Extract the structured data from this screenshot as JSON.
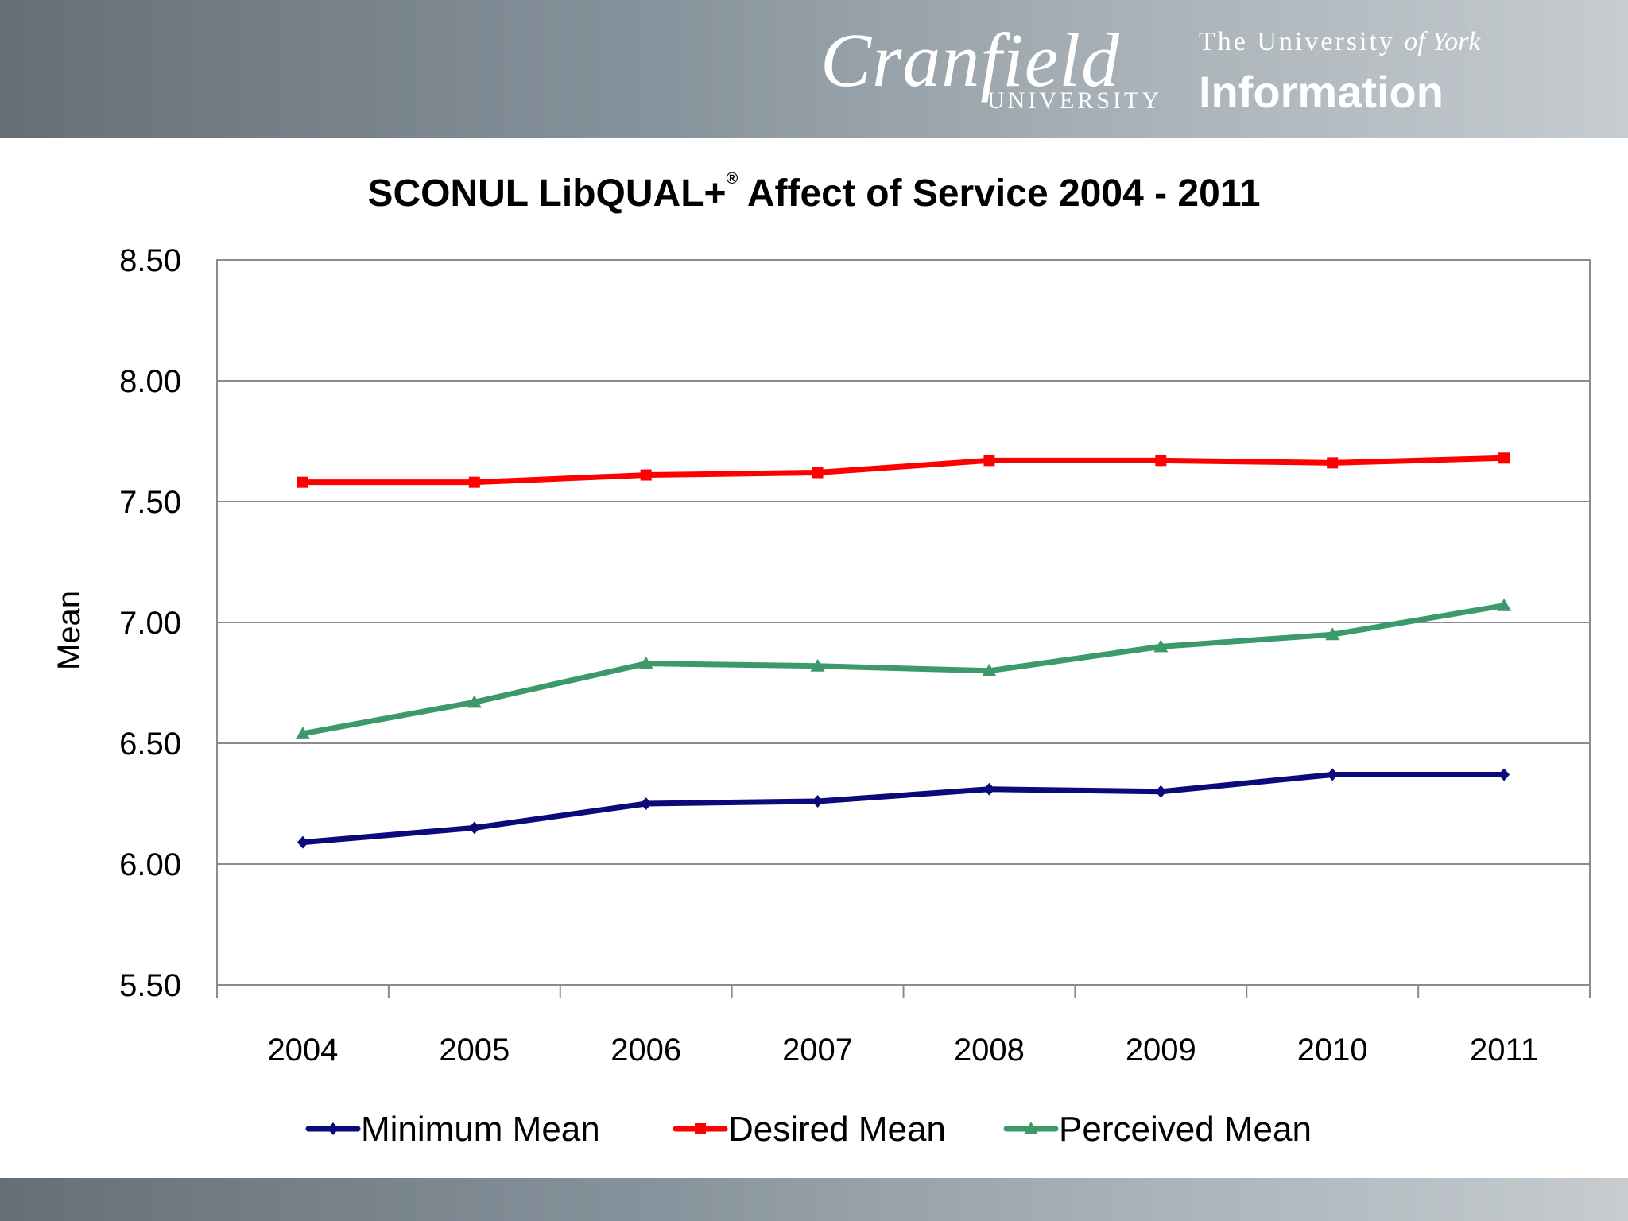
{
  "header": {
    "logo_cranfield": "Cranfield",
    "logo_cranfield_sub": "UNIVERSITY",
    "logo_york_line1": "The University",
    "logo_york_of": "of York",
    "logo_york_line2": "Information"
  },
  "chart_data": {
    "type": "line",
    "title": "SCONUL LibQUAL+",
    "title_mark": "®",
    "title_rest": " Affect of Service 2004 - 2011",
    "ylabel": "Mean",
    "xlabel": "",
    "ylim": [
      5.5,
      8.5
    ],
    "ytick_step": 0.5,
    "categories": [
      "2004",
      "2005",
      "2006",
      "2007",
      "2008",
      "2009",
      "2010",
      "2011"
    ],
    "grid": true,
    "legend_position": "bottom",
    "series": [
      {
        "name": "Minimum Mean",
        "color": "#0a0a7a",
        "marker": "diamond",
        "values": [
          6.09,
          6.15,
          6.25,
          6.26,
          6.31,
          6.3,
          6.37,
          6.37
        ]
      },
      {
        "name": "Desired Mean",
        "color": "#ff0000",
        "marker": "square",
        "values": [
          7.58,
          7.58,
          7.61,
          7.62,
          7.67,
          7.67,
          7.66,
          7.68
        ]
      },
      {
        "name": "Perceived Mean",
        "color": "#3c9a6a",
        "marker": "triangle",
        "values": [
          6.54,
          6.67,
          6.83,
          6.82,
          6.8,
          6.9,
          6.95,
          7.07
        ]
      }
    ]
  }
}
